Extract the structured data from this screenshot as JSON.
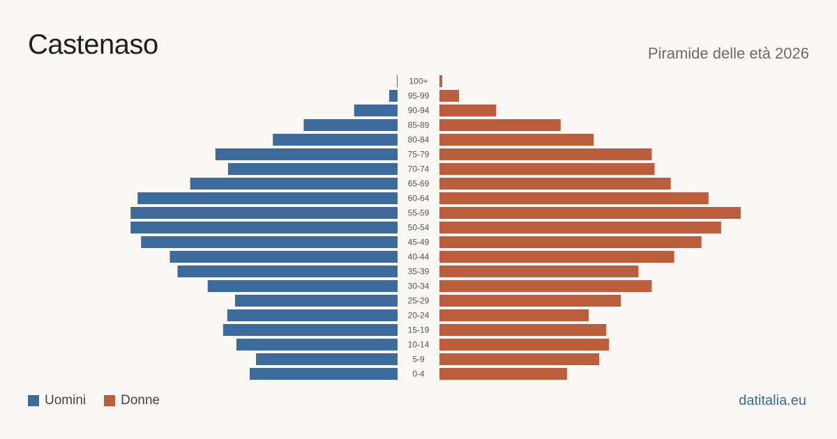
{
  "header": {
    "title": "Castenaso",
    "subtitle": "Piramide delle età 2026"
  },
  "legend": {
    "men_label": "Uomini",
    "women_label": "Donne"
  },
  "footer": {
    "source": "datitalia.eu"
  },
  "colors": {
    "men": "#3c6a9a",
    "women": "#bb5e3e",
    "background": "#faf8f4"
  },
  "chart_data": {
    "type": "bar",
    "orientation": "horizontal-pyramid",
    "title": "Castenaso",
    "subtitle": "Piramide delle età 2026",
    "categories": [
      "100+",
      "95-99",
      "90-94",
      "85-89",
      "80-84",
      "75-79",
      "70-74",
      "65-69",
      "60-64",
      "55-59",
      "50-54",
      "45-49",
      "40-44",
      "35-39",
      "30-34",
      "25-29",
      "20-24",
      "15-19",
      "10-14",
      "5-9",
      "0-4"
    ],
    "series": [
      {
        "name": "Uomini",
        "values": [
          1,
          12,
          62,
          134,
          178,
          260,
          242,
          296,
          371,
          381,
          381,
          366,
          325,
          314,
          271,
          232,
          243,
          249,
          230,
          202,
          211
        ]
      },
      {
        "name": "Donne",
        "values": [
          4,
          28,
          81,
          173,
          220,
          303,
          307,
          330,
          384,
          430,
          402,
          374,
          335,
          284,
          303,
          259,
          213,
          238,
          242,
          228,
          182
        ]
      }
    ],
    "legend_position": "bottom-left",
    "grid": false
  }
}
